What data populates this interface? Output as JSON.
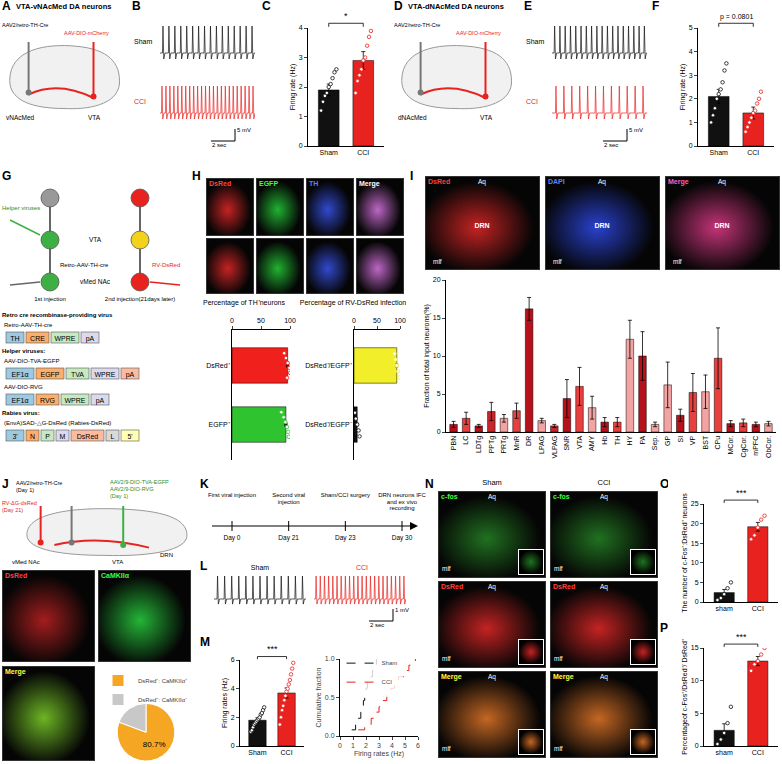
{
  "chart_data": [
    {
      "type": "bar",
      "panel": "C",
      "categories": [
        "Sham",
        "CCI"
      ],
      "values": [
        1.9,
        2.9
      ],
      "errors": [
        0.2,
        0.3
      ],
      "colors": [
        "#111111",
        "#e8231f"
      ],
      "points": [
        [
          1.2,
          1.5,
          1.7,
          1.8,
          2.0,
          2.1,
          2.3,
          2.5,
          2.6
        ],
        [
          1.8,
          2.2,
          2.4,
          2.6,
          2.9,
          3.0,
          3.4,
          3.7,
          3.9
        ]
      ],
      "ylim": [
        0,
        4
      ],
      "yticks": [
        0,
        1,
        2,
        3,
        4
      ],
      "y_label": "Firing rate (Hz)",
      "annotation": "*"
    },
    {
      "type": "bar",
      "panel": "F",
      "categories": [
        "Sham",
        "CCI"
      ],
      "values": [
        2.1,
        1.4
      ],
      "errors": [
        0.3,
        0.25
      ],
      "colors": [
        "#111111",
        "#e8231f"
      ],
      "points": [
        [
          1.0,
          1.3,
          1.6,
          2.0,
          2.2,
          2.4,
          2.7,
          3.2,
          3.5
        ],
        [
          0.6,
          0.8,
          1.0,
          1.2,
          1.4,
          1.5,
          1.8,
          2.0,
          2.3
        ]
      ],
      "ylim": [
        0,
        5
      ],
      "yticks": [
        0,
        1,
        2,
        3,
        4,
        5
      ],
      "y_label": "Firing rate (Hz)",
      "annotation": "p = 0.0801"
    },
    {
      "type": "bar",
      "orientation": "horizontal",
      "title": "Percentage of TH⁺neurons",
      "categories": [
        "DsRed⁺",
        "EGFP⁺"
      ],
      "values": [
        96,
        93
      ],
      "errors": [
        2,
        2
      ],
      "colors": [
        "#f0201c",
        "#2fc42f"
      ],
      "points": [
        [
          90,
          93,
          96,
          99,
          100,
          95
        ],
        [
          85,
          89,
          92,
          95,
          97,
          98
        ]
      ],
      "xlim": [
        0,
        100
      ],
      "xticks": [
        0,
        50,
        100
      ]
    },
    {
      "type": "bar",
      "orientation": "horizontal",
      "title": "Percentage of RV-DsRed infection",
      "categories": [
        "DsRed⁺/EGFP⁺",
        "DsRed⁺/EGFP⁻"
      ],
      "values": [
        93,
        7
      ],
      "errors": [
        2,
        2
      ],
      "colors": [
        "#f2ee2a",
        "#111111"
      ],
      "points": [
        [
          88,
          90,
          93,
          96,
          99
        ],
        [
          2,
          4,
          7,
          10,
          12
        ]
      ],
      "xlim": [
        0,
        100
      ],
      "xticks": [
        0,
        50,
        100
      ]
    },
    {
      "type": "bar",
      "categories": [
        "PBN",
        "LC",
        "LDTg",
        "PPTg",
        "PRTg",
        "MnR",
        "DR",
        "LPAG",
        "VLPAG",
        "SNR",
        "VTA",
        "AMY",
        "Hb",
        "TH",
        "HY",
        "PA",
        "Sep.",
        "GP",
        "SI",
        "VP",
        "BST",
        "CPu",
        "MCor.",
        "CgCor.",
        "mPFC",
        "ObCor."
      ],
      "values": [
        1.0,
        1.8,
        0.8,
        2.7,
        1.8,
        2.8,
        16.2,
        1.5,
        0.8,
        4.4,
        6.0,
        3.2,
        1.3,
        1.3,
        12.2,
        10.0,
        1.0,
        6.2,
        2.2,
        5.2,
        5.3,
        9.7,
        1.1,
        1.2,
        1.0,
        1.1
      ],
      "errors": [
        0.4,
        0.8,
        0.2,
        1.2,
        0.5,
        1.0,
        1.5,
        0.3,
        0.2,
        2.5,
        2.5,
        1.5,
        0.6,
        0.6,
        2.5,
        3.2,
        0.3,
        3.0,
        0.8,
        2.5,
        2.2,
        4.0,
        0.4,
        0.5,
        0.3,
        0.3
      ],
      "colors": [
        "#b5121b",
        "#e8403f",
        "#b5121b",
        "#c8262d",
        "#f4a3a3",
        "#e8403f",
        "#b5121b",
        "#f4a3a3",
        "#c8262d",
        "#b5121b",
        "#e8403f",
        "#f4a3a3",
        "#b5121b",
        "#e8403f",
        "#f4a3a3",
        "#b5121b",
        "#f4a3a3",
        "#f4a3a3",
        "#b5121b",
        "#e8403f",
        "#f4a3a3",
        "#e8403f",
        "#b5121b",
        "#e8403f",
        "#b5121b",
        "#f4a3a3"
      ],
      "ylim": [
        0,
        20
      ],
      "yticks": [
        0,
        5,
        10,
        15,
        20
      ],
      "y_label": "Fraction of total input neurons(%)"
    },
    {
      "type": "pie",
      "categories": [
        "DsRed⁺: CaMKIIα⁺",
        "DsRed⁺: CaMKIIα⁻"
      ],
      "values": [
        80.7,
        19.3
      ],
      "value_labels": [
        "80.7%",
        null
      ],
      "colors": [
        "#f5a623",
        "#c8c8c8"
      ],
      "legend": "top"
    },
    {
      "type": "bar",
      "panel": "M",
      "categories": [
        "Sham",
        "CCI"
      ],
      "values": [
        1.8,
        3.7
      ],
      "errors": [
        0.17,
        0.35
      ],
      "colors": [
        "#111111",
        "#e8231f"
      ],
      "points": [
        [
          1.0,
          1.1,
          1.3,
          1.5,
          1.6,
          1.7,
          1.8,
          1.9,
          2.0,
          2.2,
          2.3,
          2.5,
          2.7
        ],
        [
          1.5,
          2.0,
          2.5,
          2.8,
          3.2,
          3.5,
          3.8,
          4.0,
          4.3,
          4.6,
          5.0,
          5.4,
          5.8
        ]
      ],
      "ylim": [
        0,
        6
      ],
      "yticks": [
        0,
        2,
        4,
        6
      ],
      "y_label": "Firing rates (Hz)",
      "annotation": "***"
    },
    {
      "type": "line",
      "x_label": "Firing rates (Hz)",
      "y_label": "Cumulative fraction",
      "legend": "top-left",
      "xlim": [
        0,
        6
      ],
      "xticks": [
        0,
        1,
        2,
        3,
        4,
        5,
        6
      ],
      "ylim": [
        0,
        1
      ],
      "yticks": [
        {
          "value": 0,
          "label": "0.0"
        },
        {
          "value": 0.5,
          "label": "0.5"
        },
        {
          "value": 1,
          "label": "1.0"
        }
      ],
      "series": [
        {
          "name": "Sham",
          "color": "#111111",
          "line_style": "dash",
          "x": [
            0.9,
            1.2,
            1.4,
            1.6,
            1.7,
            1.8,
            1.9,
            2.0,
            2.1,
            2.3,
            2.5,
            2.6,
            2.8
          ],
          "values": [
            0.08,
            0.15,
            0.23,
            0.31,
            0.38,
            0.46,
            0.54,
            0.62,
            0.69,
            0.77,
            0.85,
            0.92,
            1.0
          ]
        },
        {
          "name": "CCI",
          "color": "#e8231f",
          "line_style": "dash",
          "x": [
            1.4,
            1.9,
            2.4,
            2.7,
            3.0,
            3.3,
            3.6,
            3.9,
            4.2,
            4.5,
            4.9,
            5.3,
            5.8
          ],
          "values": [
            0.08,
            0.15,
            0.23,
            0.31,
            0.38,
            0.46,
            0.54,
            0.62,
            0.69,
            0.77,
            0.85,
            0.92,
            1.0
          ]
        }
      ]
    },
    {
      "type": "bar",
      "panel": "O",
      "categories": [
        "sham",
        "CCI"
      ],
      "values": [
        2.4,
        19.2
      ],
      "errors": [
        0.8,
        1.1
      ],
      "colors": [
        "#111111",
        "#e8231f"
      ],
      "points": [
        [
          0.5,
          1,
          2,
          3.5,
          5
        ],
        [
          16,
          17,
          19,
          21,
          22
        ]
      ],
      "ylim": [
        0,
        25
      ],
      "yticks": [
        0,
        5,
        10,
        15,
        20,
        25
      ],
      "y_label": "The number of c-Fos⁺:DsRed⁺ neurons",
      "annotation": "***"
    },
    {
      "type": "bar",
      "panel": "P",
      "categories": [
        "sham",
        "CCI"
      ],
      "values": [
        2.4,
        13
      ],
      "errors": [
        1.0,
        0.7
      ],
      "colors": [
        "#111111",
        "#e8231f"
      ],
      "points": [
        [
          0.3,
          1,
          2,
          3.5,
          6
        ],
        [
          11.5,
          12.5,
          13,
          14,
          15
        ]
      ],
      "ylim": [
        0,
        15
      ],
      "yticks": [
        0,
        5,
        10,
        15
      ],
      "y_label": "Percentageof c-Fos⁺/DsRed⁺/ DsRed⁺",
      "annotation": "***"
    }
  ],
  "panels": {
    "A": {
      "title": "VTA-vNAcMed DA neurons",
      "injections": [
        "AAV2/retro-TH-Cre",
        "AAV-DIO-mCherry"
      ],
      "regions": [
        "vNAcMed",
        "VTA"
      ]
    },
    "B": {
      "traces": [
        "Sham",
        "CCI"
      ],
      "scale": [
        "5 mV",
        "2 sec"
      ]
    },
    "D": {
      "title": "VTA-dNAcMed DA neurons",
      "injections": [
        "AAV2/retro-TH-Cre",
        "AAV-DIO-mCherry"
      ],
      "regions": [
        "dNAcMed",
        "VTA"
      ]
    },
    "E": {
      "traces": [
        "Sham",
        "CCI"
      ],
      "scale": [
        "5 mV",
        "2 sec"
      ]
    },
    "G": {
      "schematic": {
        "helper": "Helper viruses",
        "vta": "VTA",
        "retro": "Retro-AAV-TH-cre",
        "rabies": "RV-DsRed",
        "nac": "vMed NAc",
        "first": "1st injection",
        "second": "2nd injection(21days later)"
      },
      "constructs": [
        {
          "heading": "Retro cre recombinase-providing virus",
          "name": "Retro-AAV-TH-cre",
          "elements": [
            "TH",
            "CRE",
            "WPRE",
            "pA"
          ]
        },
        {
          "heading": "Helper viruses:",
          "name": "AAV-DIO-TVA-EGFP",
          "elements": [
            "EF1α",
            "EGFP",
            "TVA",
            "WPRE",
            "pA"
          ]
        },
        {
          "name": "AAV-DIO-RVG",
          "elements": [
            "EF1α",
            "RVG",
            "WPRE",
            "pA"
          ]
        },
        {
          "heading": "Rabies virus:",
          "name": "(EnvA)SAD-△G-DsRed (Rabies-DsRed)",
          "elements": [
            "3'",
            "N",
            "P",
            "M",
            "DsRed",
            "L",
            "5'"
          ]
        }
      ]
    },
    "H": {
      "images": [
        "DsRed",
        "EGFP",
        "TH",
        "Merge"
      ]
    },
    "I": {
      "images": [
        "DsRed",
        "DAPI",
        "Merge"
      ],
      "marks": [
        "Aq",
        "DRN",
        "mlf"
      ]
    },
    "J": {
      "left": [
        "AAV2/retro-TH-Cre",
        "(Day 1)"
      ],
      "right": [
        "AAV2/9-DIO-TVA-EGFP",
        "AAV2/9-DIO-RVG",
        "(Day 1)"
      ],
      "rabies": [
        "RV-ΔG-dsRed",
        "(Day 21)"
      ],
      "regions": [
        "vMed NAc",
        "VTA",
        "DRN"
      ],
      "images": [
        "DsRed",
        "CaMKIIα",
        "Merge"
      ]
    },
    "K": {
      "events": [
        {
          "day": "Day 0",
          "text": "First viral injection"
        },
        {
          "day": "Day 21",
          "text": "Second viral injection"
        },
        {
          "day": "Day 23",
          "text": "Sham/CCI surgery"
        },
        {
          "day": "Day 30",
          "text": "DRN neurons IFC and ex vivo recording"
        }
      ]
    },
    "L": {
      "traces": [
        "Sham",
        "CCI"
      ],
      "scale": [
        "1 mV",
        "2 sec"
      ]
    },
    "N": {
      "columns": [
        "Sham",
        "CCI"
      ],
      "rows": [
        "c-fos",
        "DsRed",
        "Merge"
      ],
      "marks": [
        "Aq",
        "mlf"
      ]
    }
  }
}
